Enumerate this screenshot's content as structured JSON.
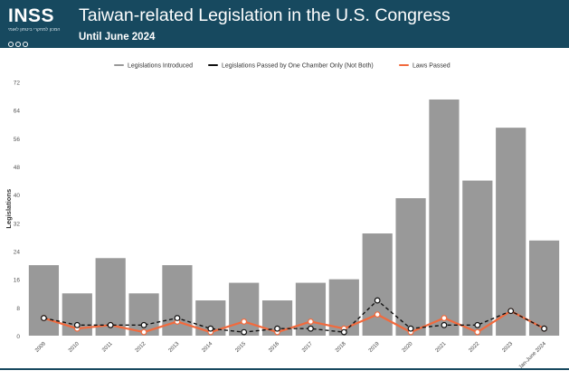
{
  "header": {
    "logo_text": "INSS",
    "logo_subtext": "המכון למחקרי ביטחון לאומי",
    "title": "Taiwan-related Legislation in the U.S. Congress",
    "subtitle": "Until June 2024"
  },
  "colors": {
    "header_bg": "#17495f",
    "bar": "#999999",
    "passed_one_chamber": "#111111",
    "laws_passed": "#f26a3d"
  },
  "chart_data": {
    "type": "bar",
    "ylabel": "Legislations",
    "ylim": [
      0,
      72
    ],
    "yticks": [
      0,
      8,
      16,
      24,
      32,
      40,
      48,
      56,
      64,
      72
    ],
    "grid": false,
    "legend_position": "top",
    "categories": [
      "2009",
      "2010",
      "2011",
      "2012",
      "2013",
      "2014",
      "2015",
      "2016",
      "2017",
      "2018",
      "2019",
      "2020",
      "2021",
      "2022",
      "2023",
      "Jan-June 2024"
    ],
    "series": [
      {
        "name": "Legislations Introduced",
        "kind": "bar",
        "values": [
          20,
          12,
          22,
          12,
          20,
          10,
          15,
          10,
          15,
          16,
          29,
          39,
          67,
          44,
          59,
          27
        ]
      },
      {
        "name": "Legislations Passed by One Chamber Only (Not Both)",
        "kind": "dashed-line",
        "values": [
          5,
          3,
          3,
          3,
          5,
          2,
          1,
          2,
          2,
          1,
          10,
          2,
          3,
          3,
          7,
          2
        ]
      },
      {
        "name": "Laws Passed",
        "kind": "line",
        "values": [
          5,
          2,
          3,
          1,
          4,
          1,
          4,
          1,
          4,
          2,
          6,
          1,
          5,
          1,
          7,
          2
        ]
      }
    ]
  }
}
